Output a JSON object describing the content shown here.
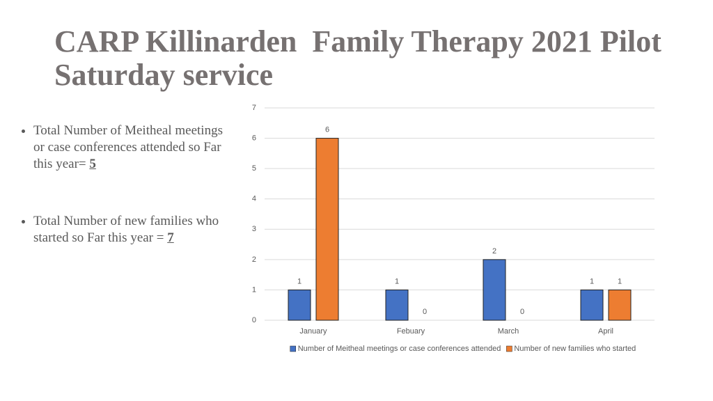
{
  "title": "CARP Killinarden  Family Therapy 2021 Pilot Saturday service",
  "bullets": [
    {
      "text": "Total Number of Meitheal meetings or case conferences attended so Far this year= ",
      "value": 5
    },
    {
      "text": "Total Number of new families who started  so Far this year = ",
      "value": 7
    }
  ],
  "chart_data": {
    "type": "bar",
    "categories": [
      "January",
      "Febuary",
      "March",
      "April"
    ],
    "series": [
      {
        "name": "Number of Meitheal meetings or case conferences attended",
        "color": "#4472c4",
        "values": [
          1,
          1,
          2,
          1
        ]
      },
      {
        "name": "Number of new families who started",
        "color": "#ed7d31",
        "values": [
          6,
          0,
          0,
          1
        ]
      }
    ],
    "ylim": [
      0,
      7
    ],
    "yticks": [
      0,
      1,
      2,
      3,
      4,
      5,
      6,
      7
    ],
    "grid": true,
    "legend": "bottom"
  }
}
